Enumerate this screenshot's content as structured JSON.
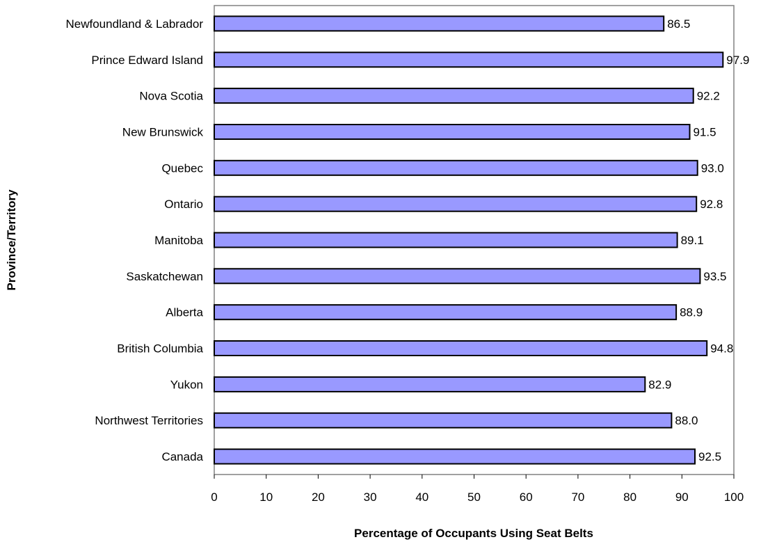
{
  "chart_data": {
    "type": "bar",
    "orientation": "horizontal",
    "categories": [
      "Newfoundland & Labrador",
      "Prince Edward Island",
      "Nova Scotia",
      "New Brunswick",
      "Quebec",
      "Ontario",
      "Manitoba",
      "Saskatchewan",
      "Alberta",
      "British Columbia",
      "Yukon",
      "Northwest Territories",
      "Canada"
    ],
    "values": [
      86.5,
      97.9,
      92.2,
      91.5,
      93.0,
      92.8,
      89.1,
      93.5,
      88.9,
      94.8,
      82.9,
      88.0,
      92.5
    ],
    "data_labels": [
      "86.5",
      "97.9",
      "92.2",
      "91.5",
      "93.0",
      "92.8",
      "89.1",
      "93.5",
      "88.9",
      "94.8",
      "82.9",
      "88.0",
      "92.5"
    ],
    "xlabel": "Percentage of Occupants Using Seat Belts",
    "ylabel": "Province/Territory",
    "xlim": [
      0,
      100
    ],
    "xticks": [
      "0",
      "10",
      "20",
      "30",
      "40",
      "50",
      "60",
      "70",
      "80",
      "90",
      "100"
    ],
    "grid": false,
    "legend": "none",
    "colors": {
      "bar_fill": "#9999FF",
      "bar_stroke": "#000000",
      "plot_border": "#808080"
    }
  }
}
